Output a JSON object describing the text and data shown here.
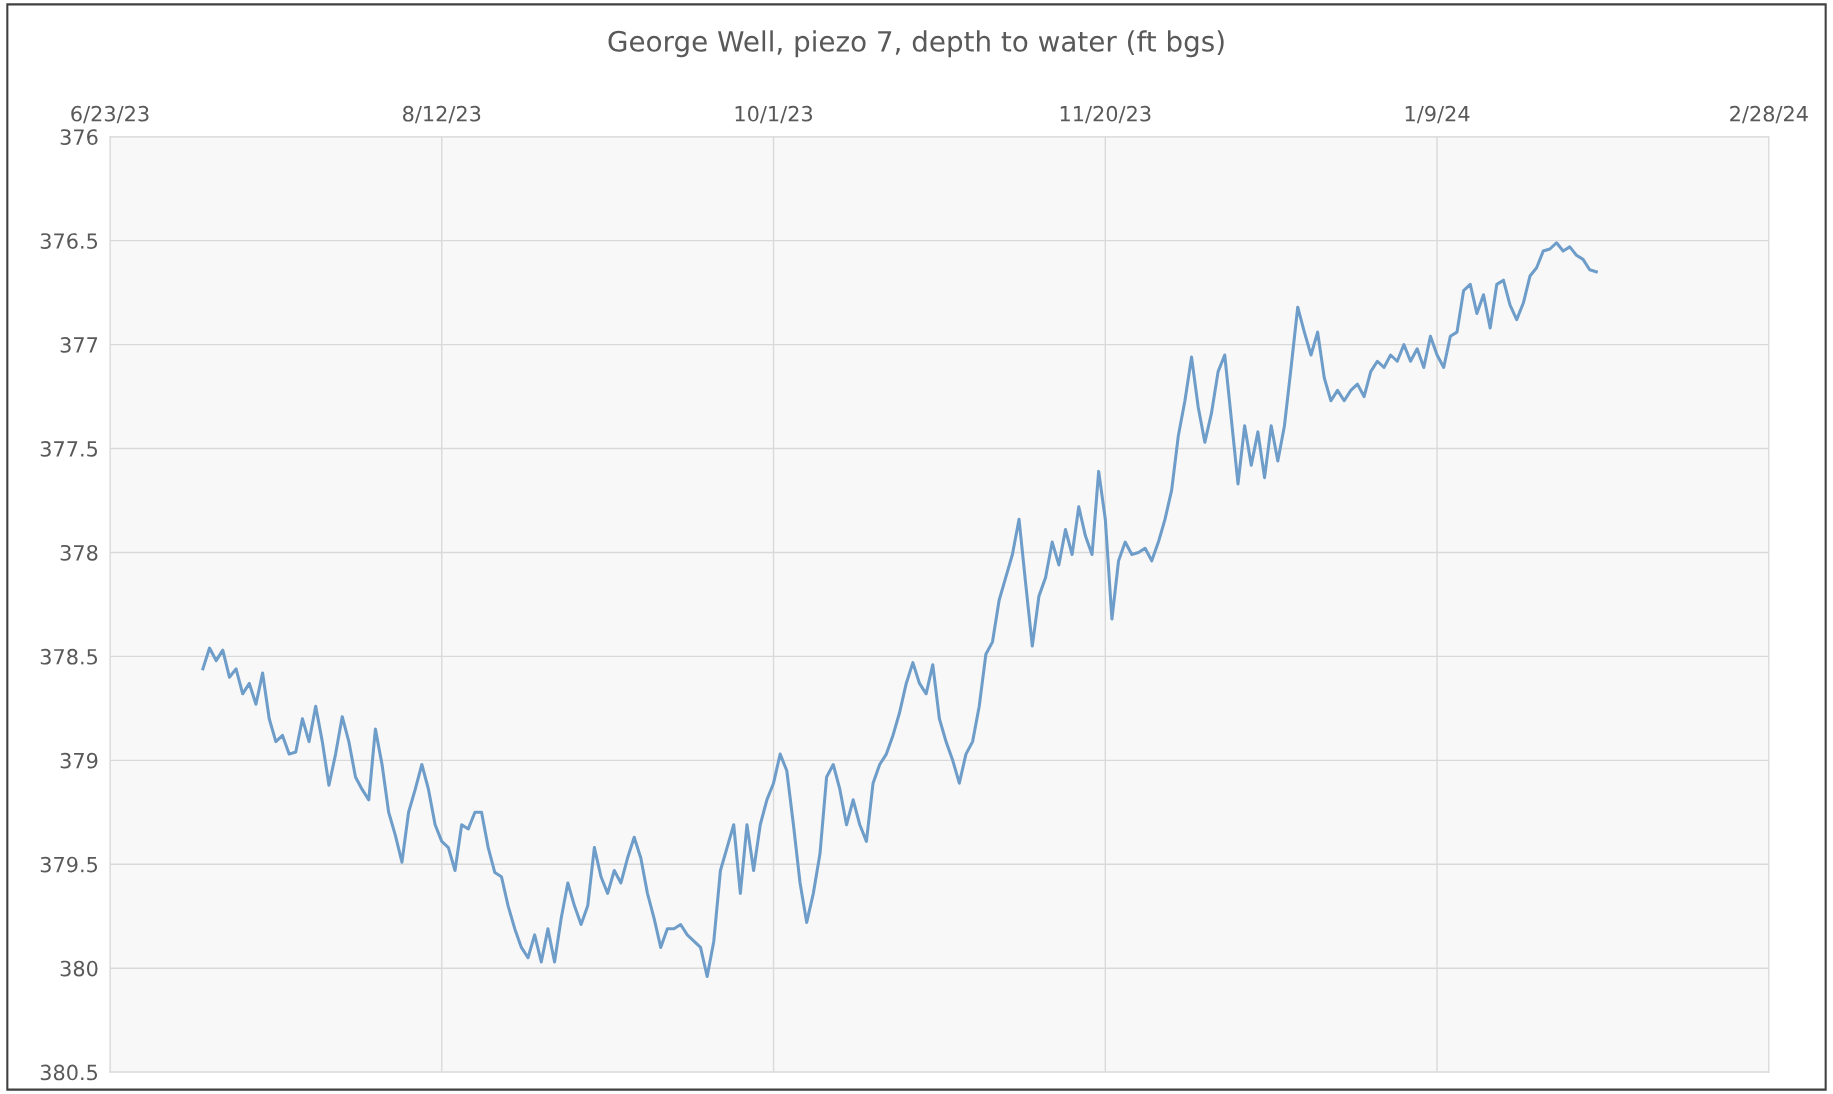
{
  "chart_data": {
    "type": "line",
    "title": "George Well, piezo 7, depth to water (ft bgs)",
    "x": [
      "2023-07-07",
      "2023-07-08",
      "2023-07-09",
      "2023-07-10",
      "2023-07-11",
      "2023-07-12",
      "2023-07-13",
      "2023-07-14",
      "2023-07-15",
      "2023-07-16",
      "2023-07-17",
      "2023-07-18",
      "2023-07-19",
      "2023-07-20",
      "2023-07-21",
      "2023-07-22",
      "2023-07-23",
      "2023-07-24",
      "2023-07-25",
      "2023-07-26",
      "2023-07-27",
      "2023-07-28",
      "2023-07-29",
      "2023-07-30",
      "2023-07-31",
      "2023-08-01",
      "2023-08-02",
      "2023-08-03",
      "2023-08-04",
      "2023-08-05",
      "2023-08-06",
      "2023-08-07",
      "2023-08-08",
      "2023-08-09",
      "2023-08-10",
      "2023-08-11",
      "2023-08-12",
      "2023-08-13",
      "2023-08-14",
      "2023-08-15",
      "2023-08-16",
      "2023-08-17",
      "2023-08-18",
      "2023-08-19",
      "2023-08-20",
      "2023-08-21",
      "2023-08-22",
      "2023-08-23",
      "2023-08-24",
      "2023-08-25",
      "2023-08-26",
      "2023-08-27",
      "2023-08-28",
      "2023-08-29",
      "2023-08-30",
      "2023-08-31",
      "2023-09-01",
      "2023-09-02",
      "2023-09-03",
      "2023-09-04",
      "2023-09-05",
      "2023-09-06",
      "2023-09-07",
      "2023-09-08",
      "2023-09-09",
      "2023-09-10",
      "2023-09-11",
      "2023-09-12",
      "2023-09-13",
      "2023-09-14",
      "2023-09-15",
      "2023-09-16",
      "2023-09-17",
      "2023-09-18",
      "2023-09-19",
      "2023-09-20",
      "2023-09-21",
      "2023-09-22",
      "2023-09-23",
      "2023-09-24",
      "2023-09-25",
      "2023-09-26",
      "2023-09-27",
      "2023-09-28",
      "2023-09-29",
      "2023-09-30",
      "2023-10-01",
      "2023-10-02",
      "2023-10-03",
      "2023-10-04",
      "2023-10-05",
      "2023-10-06",
      "2023-10-07",
      "2023-10-08",
      "2023-10-09",
      "2023-10-10",
      "2023-10-11",
      "2023-10-12",
      "2023-10-13",
      "2023-10-14",
      "2023-10-15",
      "2023-10-16",
      "2023-10-17",
      "2023-10-18",
      "2023-10-19",
      "2023-10-20",
      "2023-10-21",
      "2023-10-22",
      "2023-10-23",
      "2023-10-24",
      "2023-10-25",
      "2023-10-26",
      "2023-10-27",
      "2023-10-28",
      "2023-10-29",
      "2023-10-30",
      "2023-10-31",
      "2023-11-01",
      "2023-11-02",
      "2023-11-03",
      "2023-11-04",
      "2023-11-05",
      "2023-11-06",
      "2023-11-07",
      "2023-11-08",
      "2023-11-09",
      "2023-11-10",
      "2023-11-11",
      "2023-11-12",
      "2023-11-13",
      "2023-11-14",
      "2023-11-15",
      "2023-11-16",
      "2023-11-17",
      "2023-11-18",
      "2023-11-19",
      "2023-11-20",
      "2023-11-21",
      "2023-11-22",
      "2023-11-23",
      "2023-11-24",
      "2023-11-25",
      "2023-11-26",
      "2023-11-27",
      "2023-11-28",
      "2023-11-29",
      "2023-11-30",
      "2023-12-01",
      "2023-12-02",
      "2023-12-03",
      "2023-12-04",
      "2023-12-05",
      "2023-12-06",
      "2023-12-07",
      "2023-12-08",
      "2023-12-09",
      "2023-12-10",
      "2023-12-11",
      "2023-12-12",
      "2023-12-13",
      "2023-12-14",
      "2023-12-15",
      "2023-12-16",
      "2023-12-17",
      "2023-12-18",
      "2023-12-19",
      "2023-12-20",
      "2023-12-21",
      "2023-12-22",
      "2023-12-23",
      "2023-12-24",
      "2023-12-25",
      "2023-12-26",
      "2023-12-27",
      "2023-12-28",
      "2023-12-29",
      "2023-12-30",
      "2023-12-31",
      "2024-01-01",
      "2024-01-02",
      "2024-01-03",
      "2024-01-04",
      "2024-01-05",
      "2024-01-06",
      "2024-01-07",
      "2024-01-08",
      "2024-01-09",
      "2024-01-10",
      "2024-01-11",
      "2024-01-12",
      "2024-01-13",
      "2024-01-14",
      "2024-01-15",
      "2024-01-16",
      "2024-01-17",
      "2024-01-18",
      "2024-01-19",
      "2024-01-20",
      "2024-01-21",
      "2024-01-22",
      "2024-01-23",
      "2024-01-24",
      "2024-01-25",
      "2024-01-26",
      "2024-01-27",
      "2024-01-28",
      "2024-01-29",
      "2024-01-30",
      "2024-01-31",
      "2024-02-01",
      "2024-02-02"
    ],
    "series": [
      {
        "color": "#6f9dc9",
        "values": [
          378.56,
          378.46,
          378.52,
          378.47,
          378.6,
          378.56,
          378.68,
          378.63,
          378.73,
          378.58,
          378.8,
          378.91,
          378.88,
          378.97,
          378.96,
          378.8,
          378.91,
          378.74,
          378.91,
          379.12,
          378.97,
          378.79,
          378.91,
          379.08,
          379.14,
          379.19,
          378.85,
          379.02,
          379.25,
          379.36,
          379.49,
          379.25,
          379.14,
          379.02,
          379.14,
          379.31,
          379.39,
          379.42,
          379.53,
          379.31,
          379.33,
          379.25,
          379.25,
          379.42,
          379.54,
          379.56,
          379.7,
          379.81,
          379.9,
          379.95,
          379.84,
          379.97,
          379.81,
          379.97,
          379.76,
          379.59,
          379.7,
          379.79,
          379.7,
          379.42,
          379.56,
          379.64,
          379.53,
          379.59,
          379.47,
          379.37,
          379.47,
          379.64,
          379.76,
          379.9,
          379.81,
          379.81,
          379.79,
          379.84,
          379.87,
          379.9,
          380.04,
          379.87,
          379.53,
          379.42,
          379.31,
          379.64,
          379.31,
          379.53,
          379.31,
          379.19,
          379.11,
          378.97,
          379.05,
          379.31,
          379.59,
          379.78,
          379.64,
          379.45,
          379.08,
          379.02,
          379.14,
          379.31,
          379.19,
          379.31,
          379.39,
          379.11,
          379.02,
          378.97,
          378.88,
          378.77,
          378.63,
          378.53,
          378.63,
          378.68,
          378.54,
          378.8,
          378.91,
          379.0,
          379.11,
          378.97,
          378.91,
          378.74,
          378.49,
          378.43,
          378.23,
          378.12,
          378.01,
          377.84,
          378.15,
          378.45,
          378.21,
          378.12,
          377.95,
          378.06,
          377.89,
          378.01,
          377.78,
          377.92,
          378.01,
          377.61,
          377.84,
          378.32,
          378.04,
          377.95,
          378.01,
          378.0,
          377.98,
          378.04,
          377.95,
          377.84,
          377.7,
          377.44,
          377.27,
          377.06,
          377.3,
          377.47,
          377.33,
          377.13,
          377.05,
          377.36,
          377.67,
          377.39,
          377.58,
          377.42,
          377.64,
          377.39,
          377.56,
          377.39,
          377.11,
          376.82,
          376.94,
          377.05,
          376.94,
          377.16,
          377.27,
          377.22,
          377.27,
          377.22,
          377.19,
          377.25,
          377.13,
          377.08,
          377.11,
          377.05,
          377.08,
          377.0,
          377.08,
          377.02,
          377.11,
          376.96,
          377.05,
          377.11,
          376.96,
          376.94,
          376.74,
          376.71,
          376.85,
          376.76,
          376.92,
          376.71,
          376.69,
          376.81,
          376.88,
          376.8,
          376.67,
          376.63,
          376.55,
          376.54,
          376.51,
          376.55,
          376.53,
          376.57,
          376.59,
          376.64,
          376.65
        ]
      }
    ],
    "xlim": [
      "2023-06-23",
      "2024-02-28"
    ],
    "xticks": [
      {
        "value": "2023-06-23",
        "label": "6/23/23"
      },
      {
        "value": "2023-08-12",
        "label": "8/12/23"
      },
      {
        "value": "2023-10-01",
        "label": "10/1/23"
      },
      {
        "value": "2023-11-20",
        "label": "11/20/23"
      },
      {
        "value": "2024-01-09",
        "label": "1/9/24"
      },
      {
        "value": "2024-02-28",
        "label": "2/28/24"
      }
    ],
    "ylim": [
      380.5,
      376
    ],
    "yticks": [
      376,
      376.5,
      377,
      377.5,
      378,
      378.5,
      379,
      379.5,
      380,
      380.5
    ],
    "grid": true,
    "marker": "none",
    "line_style": "solid"
  }
}
